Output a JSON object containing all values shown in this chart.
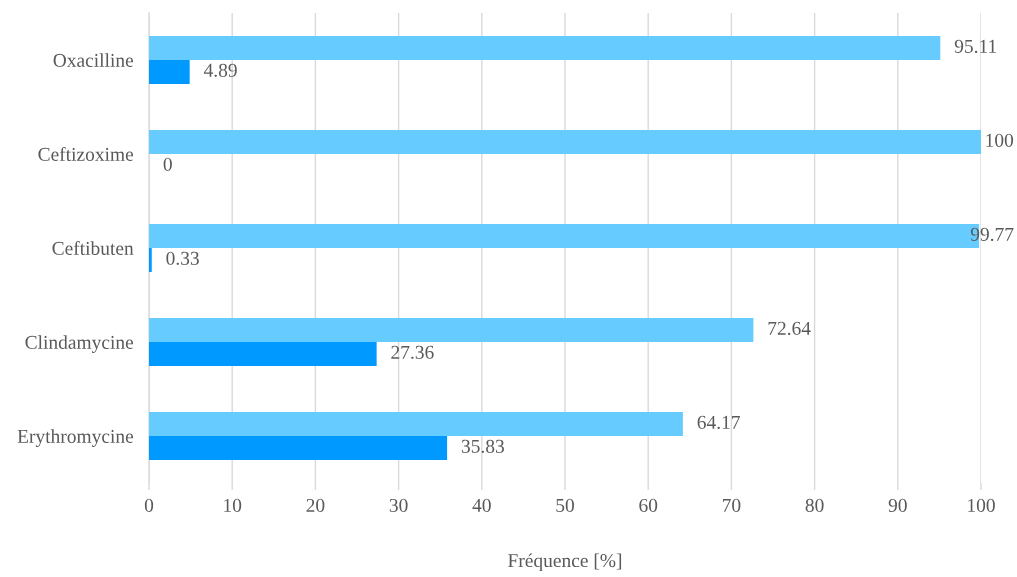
{
  "chart_data": {
    "type": "bar",
    "orientation": "horizontal",
    "categories": [
      "Oxacilline",
      "Ceftizoxime",
      "Ceftibuten",
      "Clindamycine",
      "Erythromycine"
    ],
    "series": [
      {
        "color": "#66ccff",
        "values": [
          95.11,
          100,
          99.77,
          72.64,
          64.17
        ]
      },
      {
        "color": "#0099ff",
        "values": [
          4.89,
          0,
          0.33,
          27.36,
          35.83
        ]
      }
    ],
    "xlim": [
      0,
      100
    ],
    "xticks": [
      0,
      10,
      20,
      30,
      40,
      50,
      60,
      70,
      80,
      90,
      100
    ],
    "xlabel": "Fréquence [%]",
    "grid": "x",
    "data_labels": true
  }
}
